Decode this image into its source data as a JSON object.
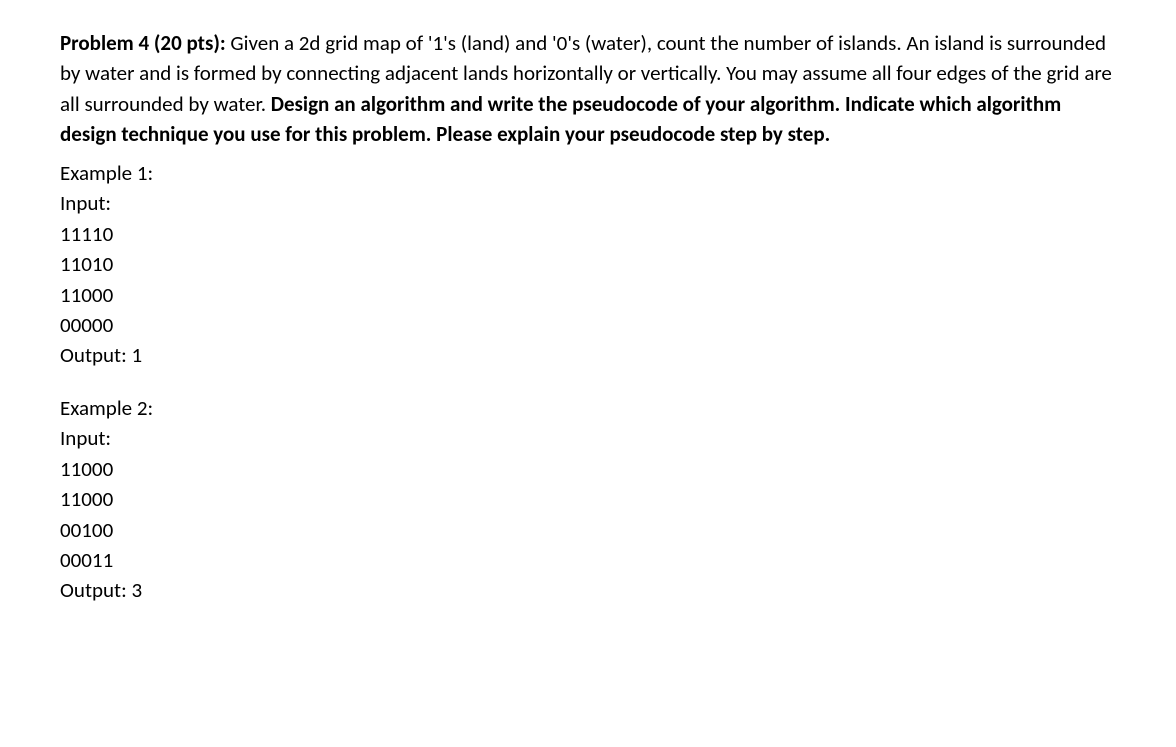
{
  "problem": {
    "title_prefix": "Problem 4 (20 pts): ",
    "statement_part1": "Given a 2d grid map of '1's (land) and '0's (water), count the number of islands. An island is surrounded by water and is formed by connecting adjacent lands horizontally or vertically. You may assume all four edges of the grid are all surrounded by water. ",
    "bold_instruction": "Design an algorithm and write the pseudocode of your algorithm. Indicate which algorithm design technique you use for this problem. Please explain your pseudocode step by step."
  },
  "example1": {
    "header": "Example 1:",
    "input_label": "Input:",
    "rows": [
      "11110",
      "11010",
      "11000",
      "00000"
    ],
    "output": "Output: 1"
  },
  "example2": {
    "header": "Example 2:",
    "input_label": "Input:",
    "rows": [
      "11000",
      "11000",
      "00100",
      "00011"
    ],
    "output": "Output: 3"
  }
}
